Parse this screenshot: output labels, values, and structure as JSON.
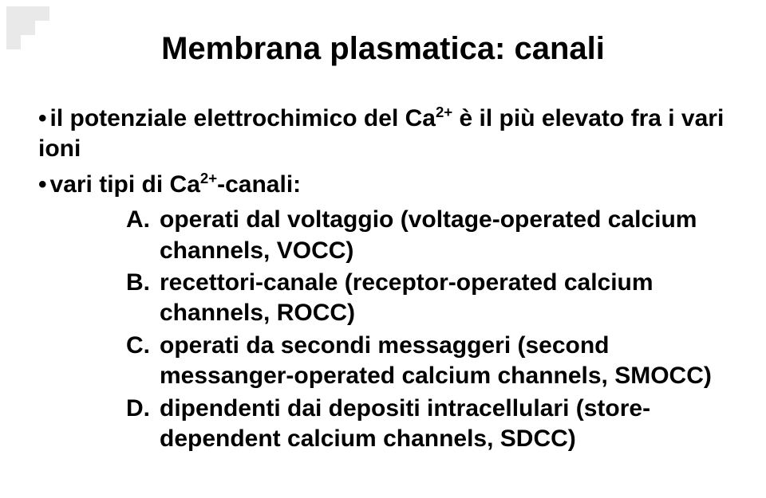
{
  "title": "Membrana plasmatica: canali",
  "bullet1_prefix": "il potenziale elettrochimico del Ca",
  "bullet1_sup": "2+",
  "bullet1_suffix": " è il più elevato fra i vari ioni",
  "bullet2_prefix": "vari tipi di Ca",
  "bullet2_sup": "2+",
  "bullet2_suffix": "-canali:",
  "items": {
    "A": {
      "letter": "A.",
      "text": "operati dal voltaggio (voltage-operated calcium channels, VOCC)"
    },
    "B": {
      "letter": "B.",
      "text": "recettori-canale (receptor-operated calcium channels, ROCC)"
    },
    "C": {
      "letter": "C.",
      "text": "operati da secondi messaggeri (second messanger-operated calcium channels, SMOCC)"
    },
    "D": {
      "letter": "D.",
      "text": "dipendenti dai depositi intracellulari (store-dependent calcium channels, SDCC)"
    }
  },
  "marker": "•",
  "deco_color": "#e9e9e9",
  "text_color": "#000000",
  "background": "#ffffff"
}
